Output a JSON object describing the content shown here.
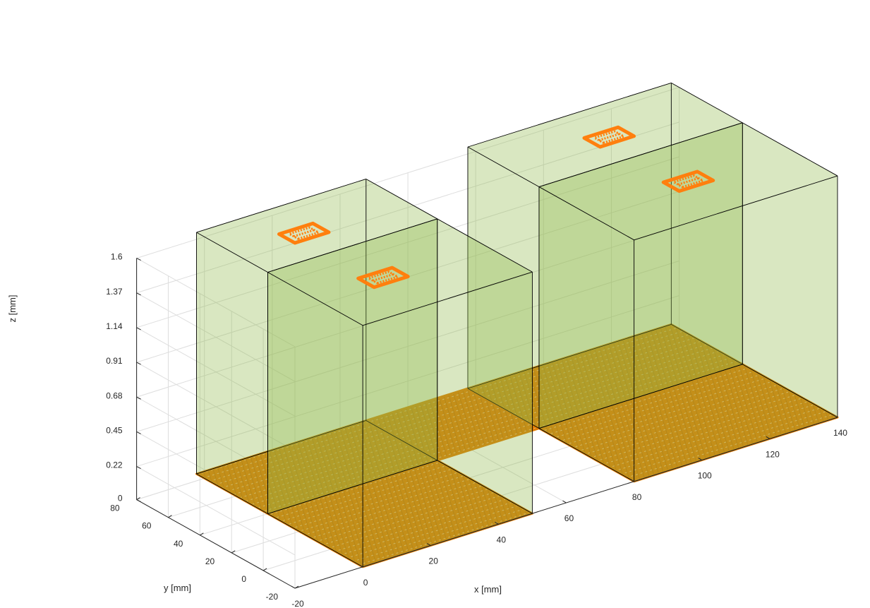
{
  "chart_data": {
    "type": "3d-box",
    "title": "",
    "xlabel": "x [mm]",
    "ylabel": "y [mm]",
    "zlabel": "z [mm]",
    "xticks": [
      "-20",
      "0",
      "20",
      "40",
      "60",
      "80",
      "100",
      "120",
      "140"
    ],
    "yticks": [
      "-20",
      "0",
      "20",
      "40",
      "60",
      "80"
    ],
    "zticks": [
      "0",
      "0.22",
      "0.45",
      "0.68",
      "0.91",
      "1.14",
      "1.37",
      "1.6"
    ],
    "xlim": [
      -20,
      140
    ],
    "ylim": [
      -20,
      80
    ],
    "zlim": [
      0,
      1.6
    ],
    "grid": true,
    "colors": {
      "box_face": "#8fba4a",
      "box_edge": "#000000",
      "ground_plane": "#e07b00",
      "coil": "#ff7f0e",
      "grid": "#dedede",
      "axis": "#262626"
    },
    "series": [
      {
        "type": "box",
        "x": [
          0,
          50
        ],
        "y": [
          -20,
          40
        ],
        "z": [
          0,
          1.6
        ]
      },
      {
        "type": "box",
        "x": [
          0,
          50
        ],
        "y": [
          40,
          85
        ],
        "z": [
          0,
          1.6
        ]
      },
      {
        "type": "box",
        "x": [
          80,
          140
        ],
        "y": [
          -20,
          40
        ],
        "z": [
          0,
          1.6
        ]
      },
      {
        "type": "box",
        "x": [
          80,
          140
        ],
        "y": [
          40,
          85
        ],
        "z": [
          0,
          1.6
        ]
      },
      {
        "type": "plane",
        "x": [
          0,
          50
        ],
        "y": [
          -20,
          40
        ],
        "z": 0
      },
      {
        "type": "plane",
        "x": [
          0,
          50
        ],
        "y": [
          40,
          85
        ],
        "z": 0
      },
      {
        "type": "plane",
        "x": [
          50,
          80
        ],
        "y": [
          40,
          85
        ],
        "z": 0
      },
      {
        "type": "plane",
        "x": [
          80,
          140
        ],
        "y": [
          -20,
          40
        ],
        "z": 0
      },
      {
        "type": "plane",
        "x": [
          80,
          140
        ],
        "y": [
          40,
          85
        ],
        "z": 0
      },
      {
        "type": "coil",
        "x": [
          15,
          25
        ],
        "y": [
          5,
          15
        ],
        "z": 1.6
      },
      {
        "type": "coil",
        "x": [
          15,
          25
        ],
        "y": [
          55,
          65
        ],
        "z": 1.6
      },
      {
        "type": "coil",
        "x": [
          105,
          115
        ],
        "y": [
          5,
          15
        ],
        "z": 1.6
      },
      {
        "type": "coil",
        "x": [
          105,
          115
        ],
        "y": [
          55,
          65
        ],
        "z": 1.6
      }
    ]
  }
}
